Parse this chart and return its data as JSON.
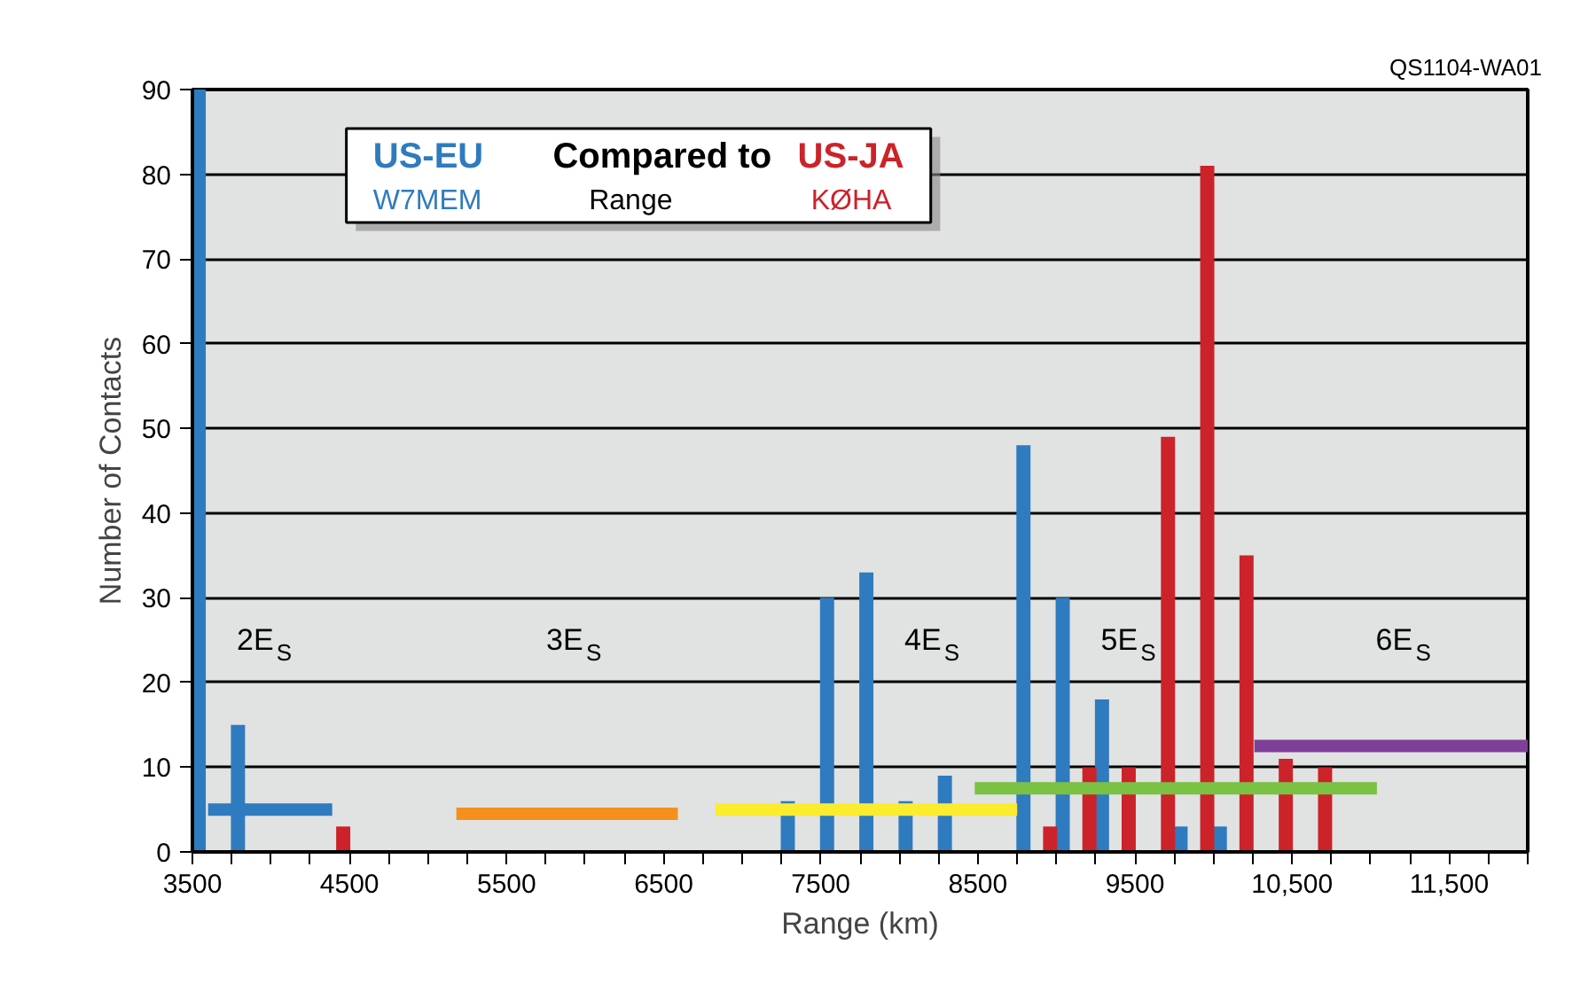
{
  "chart_data": {
    "type": "bar",
    "title": "Compared to",
    "subtitle": "Range",
    "xlabel": "Range (km)",
    "ylabel": "Number of Contacts",
    "xlim": [
      3500,
      12000
    ],
    "ylim": [
      0,
      90
    ],
    "yticks": [
      0,
      10,
      20,
      30,
      40,
      50,
      60,
      70,
      80,
      90
    ],
    "xticks": [
      3500,
      {
        "value": 3750,
        "label": null
      },
      {
        "value": 4000,
        "label": null
      },
      {
        "value": 4250,
        "label": null
      },
      4500,
      {
        "value": 4750,
        "label": null
      },
      {
        "value": 5000,
        "label": null
      },
      {
        "value": 5250,
        "label": null
      },
      5500,
      {
        "value": 5750,
        "label": null
      },
      {
        "value": 6000,
        "label": null
      },
      {
        "value": 6250,
        "label": null
      },
      6500,
      {
        "value": 6750,
        "label": null
      },
      {
        "value": 7000,
        "label": null
      },
      {
        "value": 7250,
        "label": null
      },
      7500,
      {
        "value": 7750,
        "label": null
      },
      {
        "value": 8000,
        "label": null
      },
      {
        "value": 8250,
        "label": null
      },
      8500,
      {
        "value": 8750,
        "label": null
      },
      {
        "value": 9000,
        "label": null
      },
      {
        "value": 9250,
        "label": null
      },
      9500,
      {
        "value": 9750,
        "label": null
      },
      {
        "value": 10000,
        "label": null
      },
      {
        "value": 10250,
        "label": null
      },
      {
        "value": 10500,
        "label": "10,500"
      },
      {
        "value": 10750,
        "label": null
      },
      {
        "value": 11000,
        "label": null
      },
      {
        "value": 11250,
        "label": null
      },
      {
        "value": 11500,
        "label": "11,500"
      },
      {
        "value": 11750,
        "label": null
      },
      {
        "value": 12000,
        "label": null
      }
    ],
    "grid": "y",
    "legend": "top left",
    "series": [
      {
        "name": "US-EU",
        "color": "#2f7bbf",
        "x": [
          3540,
          3790,
          7290,
          7540,
          7790,
          8040,
          8290,
          8790,
          9040,
          9290,
          9790,
          10040
        ],
        "values": [
          90,
          15,
          6,
          30,
          33,
          6,
          9,
          48,
          30,
          18,
          3,
          3
        ]
      },
      {
        "name": "US-JA",
        "color": "#cc2229",
        "x": [
          4460,
          8960,
          9210,
          9460,
          9710,
          9960,
          10210,
          10460,
          10710
        ],
        "values": [
          3,
          3,
          10,
          10,
          49,
          81,
          35,
          11,
          10
        ]
      },
      {
        "type": "line",
        "color": "#2f7bbf",
        "x": [
          3600,
          4390
        ],
        "values": [
          5,
          5
        ]
      },
      {
        "type": "line",
        "color": "#f4901e",
        "x": [
          5180,
          6590
        ],
        "values": [
          4.5,
          4.5
        ]
      },
      {
        "type": "line",
        "color": "#fbec2d",
        "x": [
          6830,
          8750
        ],
        "values": [
          5,
          5
        ]
      },
      {
        "type": "line",
        "color": "#7bc143",
        "x": [
          8480,
          11040
        ],
        "values": [
          7.5,
          7.5
        ]
      },
      {
        "type": "line",
        "color": "#7f3f98",
        "x": [
          10260,
          12000
        ],
        "values": [
          12.5,
          12.5
        ]
      }
    ],
    "annotations": [
      "QS1104-WA01",
      "W7MEM",
      "KØHA",
      "2E$_{S}$",
      "3E$_{S}$",
      "4E$_{S}$",
      "5E$_{S}$",
      "6E$_{S}$"
    ]
  }
}
